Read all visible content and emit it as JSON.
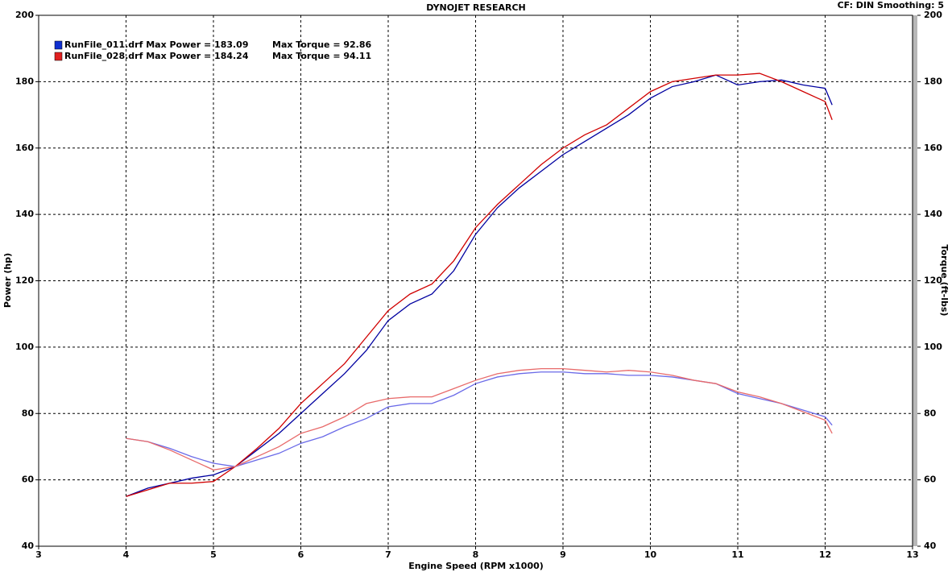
{
  "chart_data": {
    "type": "line",
    "title": "DYNOJET RESEARCH",
    "subtitle": "CF: DIN  Smoothing: 5",
    "x_label": "Engine Speed (RPM x1000)",
    "y_label": "Power (hp)",
    "y2_label": "Torque (ft-lbs)",
    "legend": [
      {
        "label": "RunFile_011.drf Max Power = 183.09",
        "torque": "Max Torque = 92.86",
        "color": "#1030d0"
      },
      {
        "label": "RunFile_028.drf Max Power = 184.24",
        "torque": "Max Torque = 94.11",
        "color": "#e02020"
      }
    ],
    "x": [
      4.0,
      4.25,
      4.5,
      4.75,
      5.0,
      5.25,
      5.5,
      5.75,
      6.0,
      6.25,
      6.5,
      6.75,
      7.0,
      7.25,
      7.5,
      7.75,
      8.0,
      8.25,
      8.5,
      8.75,
      9.0,
      9.25,
      9.5,
      9.75,
      10.0,
      10.25,
      10.5,
      10.75,
      11.0,
      11.25,
      11.5,
      11.75,
      12.0,
      12.08
    ],
    "series": [
      {
        "color": "#0000a0",
        "values": [
          55,
          57.5,
          59,
          60.5,
          61.5,
          64,
          69,
          74,
          80,
          86,
          92,
          99,
          108,
          113,
          116,
          123,
          134,
          142,
          148,
          153,
          158,
          162,
          166,
          170,
          175,
          178.5,
          180,
          182,
          179,
          180,
          180.5,
          179,
          178,
          173
        ]
      },
      {
        "color": "#d00000",
        "values": [
          55,
          57,
          59,
          59,
          59.5,
          64,
          69.5,
          75.5,
          83,
          89,
          95,
          103,
          111,
          116,
          119,
          126,
          136,
          143,
          149,
          155,
          160,
          164,
          167,
          172,
          177,
          180,
          181,
          182,
          182,
          182.5,
          180,
          177,
          174,
          168.5
        ]
      },
      {
        "color": "#6a6ae8",
        "axis": "y2",
        "values": [
          72.5,
          71.5,
          69.5,
          67,
          65,
          64,
          66,
          68,
          71,
          73,
          76,
          78.5,
          82,
          83,
          83,
          85.5,
          89,
          91,
          92,
          92.5,
          92.5,
          92,
          92,
          91.5,
          91.5,
          91,
          90,
          89,
          86,
          84.5,
          83,
          81,
          79,
          76.5
        ]
      },
      {
        "color": "#e86a6a",
        "axis": "y2",
        "values": [
          72.5,
          71.5,
          69,
          66,
          63,
          64,
          67,
          70,
          74,
          76,
          79,
          83,
          84.5,
          85,
          85,
          87.5,
          90,
          92,
          93,
          93.5,
          93.5,
          93,
          92.5,
          93,
          92.5,
          91.5,
          90,
          89,
          86.5,
          85,
          83,
          80.5,
          78,
          74
        ]
      }
    ],
    "xlim": [
      3,
      13
    ],
    "xticks": [
      3,
      4,
      5,
      6,
      7,
      8,
      9,
      10,
      11,
      12,
      13
    ],
    "ylim": [
      40,
      200
    ],
    "yticks": [
      40,
      60,
      80,
      100,
      120,
      140,
      160,
      180,
      200
    ],
    "y2lim": [
      40,
      200
    ],
    "y2ticks": [
      40,
      60,
      80,
      100,
      120,
      140,
      160,
      180,
      200
    ],
    "grid": true
  }
}
